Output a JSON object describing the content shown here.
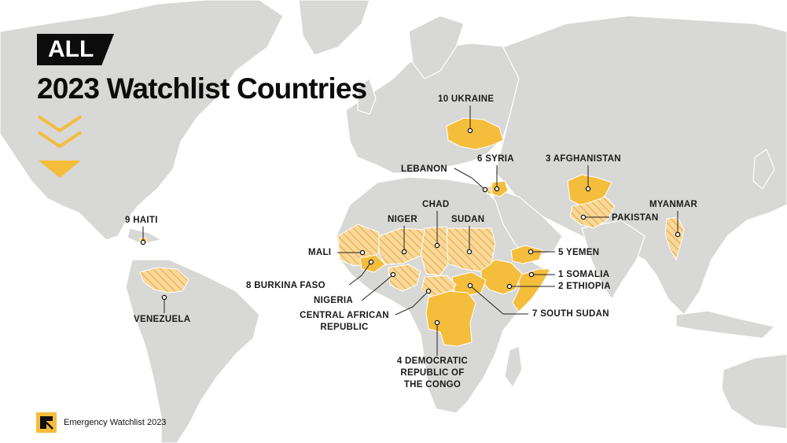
{
  "header": {
    "tag": "ALL",
    "title": "2023 Watchlist Countries"
  },
  "icons": {
    "chevrons": "triple-chevron-down-icon",
    "logo": "irc-logo-icon"
  },
  "footer": {
    "text": "Emergency Watchlist 2023"
  },
  "colors": {
    "highlight": "#f5bd3c",
    "land": "#d8d8d6",
    "ocean": "#ffffff",
    "text": "#1a1a1a"
  },
  "legend_styles": {
    "solid": "ranked watchlist country",
    "hatched": "other watchlist country"
  },
  "countries": [
    {
      "id": "somalia",
      "label": "1 SOMALIA",
      "style": "solid"
    },
    {
      "id": "ethiopia",
      "label": "2 ETHIOPIA",
      "style": "solid"
    },
    {
      "id": "afghanistan",
      "label": "3 AFGHANISTAN",
      "style": "solid"
    },
    {
      "id": "drc",
      "label": "4 DEMOCRATIC REPUBLIC OF THE CONGO",
      "style": "solid"
    },
    {
      "id": "yemen",
      "label": "5 YEMEN",
      "style": "solid"
    },
    {
      "id": "syria",
      "label": "6 SYRIA",
      "style": "solid"
    },
    {
      "id": "south-sudan",
      "label": "7 SOUTH SUDAN",
      "style": "solid"
    },
    {
      "id": "burkina-faso",
      "label": "8 BURKINA FASO",
      "style": "solid"
    },
    {
      "id": "haiti",
      "label": "9 HAITI",
      "style": "solid"
    },
    {
      "id": "ukraine",
      "label": "10 UKRAINE",
      "style": "solid"
    },
    {
      "id": "lebanon",
      "label": "LEBANON",
      "style": "hatched"
    },
    {
      "id": "chad",
      "label": "CHAD",
      "style": "hatched"
    },
    {
      "id": "niger",
      "label": "NIGER",
      "style": "hatched"
    },
    {
      "id": "sudan",
      "label": "SUDAN",
      "style": "hatched"
    },
    {
      "id": "mali",
      "label": "MALI",
      "style": "hatched"
    },
    {
      "id": "nigeria",
      "label": "NIGERIA",
      "style": "hatched"
    },
    {
      "id": "car",
      "label": "CENTRAL AFRICAN REPUBLIC",
      "style": "hatched"
    },
    {
      "id": "pakistan",
      "label": "PAKISTAN",
      "style": "hatched"
    },
    {
      "id": "myanmar",
      "label": "MYANMAR",
      "style": "hatched"
    },
    {
      "id": "venezuela",
      "label": "VENEZUELA",
      "style": "hatched"
    }
  ]
}
